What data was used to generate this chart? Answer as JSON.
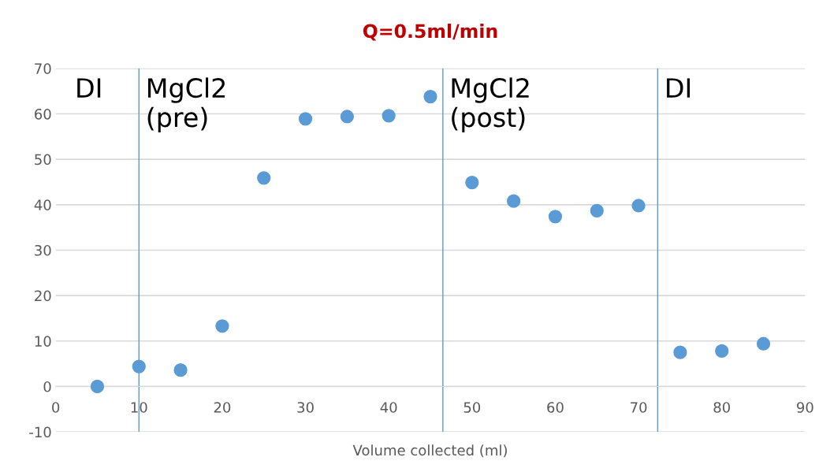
{
  "chart_data": {
    "type": "scatter",
    "title": "Q=0.5ml/min",
    "xlabel": "Volume collected (ml)",
    "x": [
      5,
      10,
      15,
      20,
      25,
      30,
      35,
      40,
      45,
      50,
      55,
      60,
      65,
      70,
      75,
      80,
      85
    ],
    "series": [
      {
        "color": "#5b9bd5",
        "values": [
          0,
          4.4,
          3.6,
          13.3,
          45.9,
          58.9,
          59.4,
          59.6,
          63.8,
          44.9,
          40.8,
          37.4,
          38.7,
          39.8,
          7.5,
          7.8,
          9.4
        ]
      }
    ],
    "xlim": [
      0,
      90
    ],
    "xticks": [
      0,
      10,
      20,
      30,
      40,
      50,
      60,
      70,
      80,
      90
    ],
    "ylim": [
      -10,
      70
    ],
    "yticks": [
      -10,
      0,
      10,
      20,
      30,
      40,
      50,
      60,
      70
    ],
    "grid": "y",
    "marker": "circle",
    "ref_lines": [
      {
        "axis": "x",
        "value": 10,
        "label": "MgCl2\n(pre)",
        "color": "#5b9bd5"
      },
      {
        "axis": "x",
        "value": 46.5,
        "label": "MgCl2\n(post)",
        "color": "#5b9bd5"
      },
      {
        "axis": "x",
        "value": 72.3,
        "label": "DI",
        "color": "#5b9bd5"
      }
    ],
    "annotations": [
      "DI"
    ]
  }
}
